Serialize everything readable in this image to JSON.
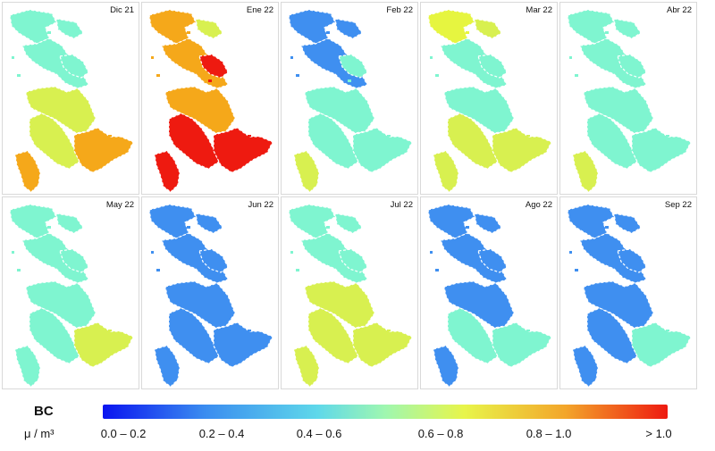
{
  "panels": [
    {
      "label": "Dic 21",
      "colors": [
        "#7ff5d0",
        "#7ff5d0",
        "#7ff5d0",
        "#d8f050",
        "#d8f050",
        "#f5a81a",
        "#f5a81a",
        "#7ff5d0"
      ]
    },
    {
      "label": "Ene 22",
      "colors": [
        "#f5a81a",
        "#d8f050",
        "#f5a81a",
        "#f5a81a",
        "#ee1a10",
        "#ee1a10",
        "#ee1a10",
        "#ee1a10"
      ]
    },
    {
      "label": "Feb 22",
      "colors": [
        "#3f8ff0",
        "#3f8ff0",
        "#3f8ff0",
        "#7ff5d0",
        "#7ff5d0",
        "#7ff5d0",
        "#d8f050",
        "#7ff5d0"
      ]
    },
    {
      "label": "Mar 22",
      "colors": [
        "#e6f540",
        "#d8f050",
        "#7ff5d0",
        "#7ff5d0",
        "#d8f050",
        "#d8f050",
        "#d8f050",
        "#7ff5d0"
      ]
    },
    {
      "label": "Abr 22",
      "colors": [
        "#7ff5d0",
        "#7ff5d0",
        "#7ff5d0",
        "#7ff5d0",
        "#7ff5d0",
        "#7ff5d0",
        "#d8f050",
        "#7ff5d0"
      ]
    },
    {
      "label": "May 22",
      "colors": [
        "#7ff5d0",
        "#7ff5d0",
        "#7ff5d0",
        "#7ff5d0",
        "#7ff5d0",
        "#d8f050",
        "#7ff5d0",
        "#7ff5d0"
      ]
    },
    {
      "label": "Jun 22",
      "colors": [
        "#3f8ff0",
        "#3f8ff0",
        "#3f8ff0",
        "#3f8ff0",
        "#3f8ff0",
        "#3f8ff0",
        "#3f8ff0",
        "#3f8ff0"
      ]
    },
    {
      "label": "Jul 22",
      "colors": [
        "#7ff5d0",
        "#7ff5d0",
        "#7ff5d0",
        "#d8f050",
        "#d8f050",
        "#d8f050",
        "#d8f050",
        "#7ff5d0"
      ]
    },
    {
      "label": "Ago 22",
      "colors": [
        "#3f8ff0",
        "#3f8ff0",
        "#3f8ff0",
        "#3f8ff0",
        "#7ff5d0",
        "#7ff5d0",
        "#3f8ff0",
        "#3f8ff0"
      ]
    },
    {
      "label": "Sep 22",
      "colors": [
        "#3f8ff0",
        "#3f8ff0",
        "#3f8ff0",
        "#3f8ff0",
        "#3f8ff0",
        "#7ff5d0",
        "#3f8ff0",
        "#3f8ff0"
      ]
    }
  ],
  "legend": {
    "title": "BC",
    "unit": "μ / m³",
    "colors": [
      "#0a14f0",
      "#3a8cf0",
      "#5fd8ea",
      "#9ff7b0",
      "#e8f54a",
      "#f3a52a",
      "#ee1a10"
    ],
    "ticks": [
      "0.0 – 0.2",
      "0.2 – 0.4",
      "0.4 – 0.6",
      "0.6 – 0.8",
      "0.8 – 1.0",
      "> 1.0"
    ]
  }
}
